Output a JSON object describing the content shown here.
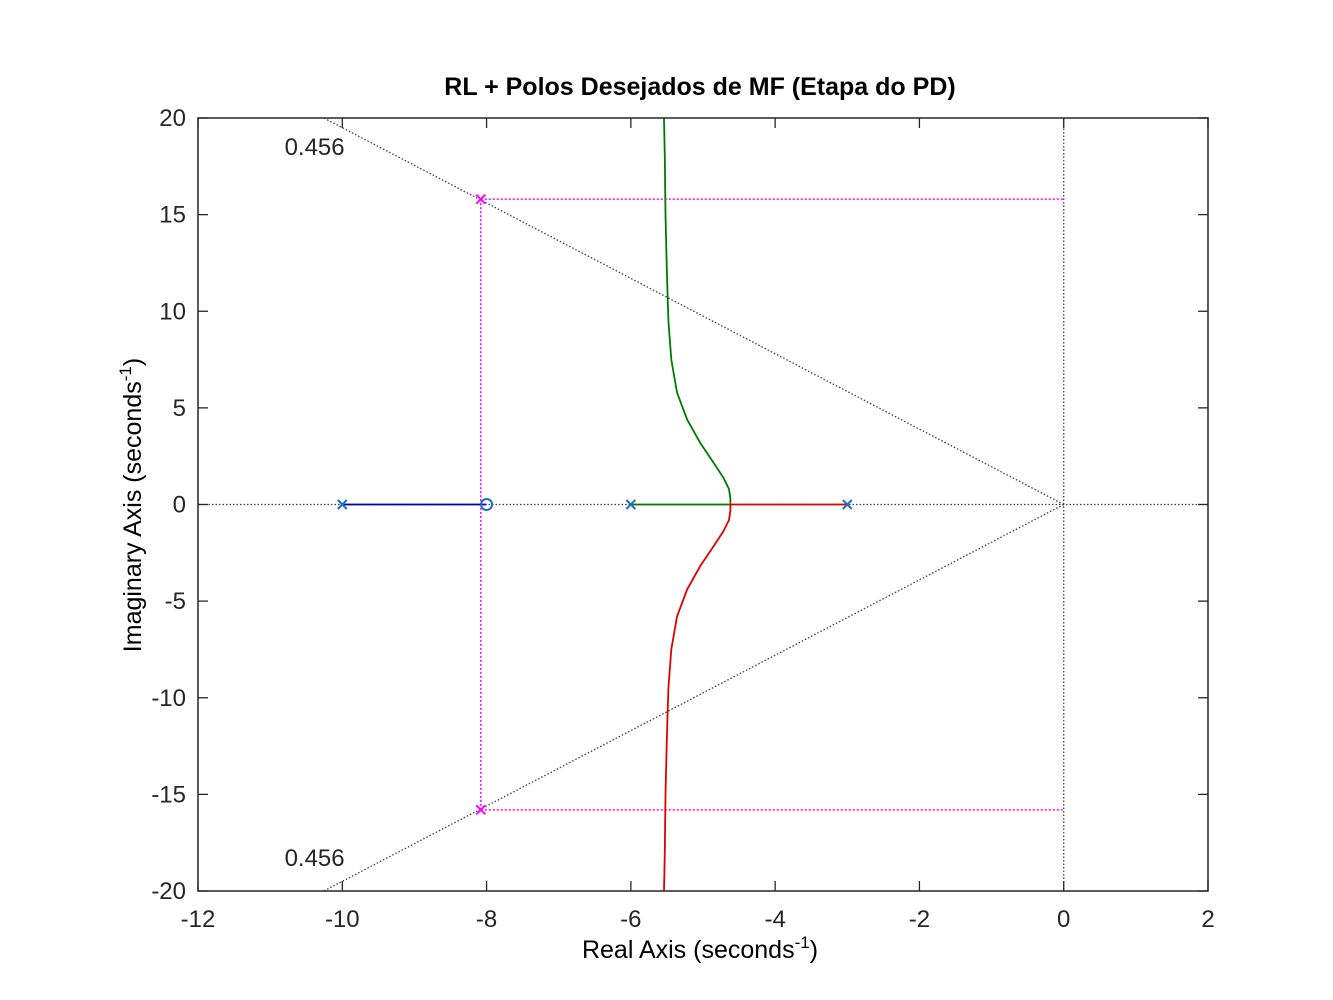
{
  "chart_data": {
    "type": "line",
    "title": "RL + Polos Desejados de MF (Etapa do PD)",
    "xlabel": "Real Axis (seconds",
    "xlabel_sup": "-1",
    "xlabel_end": ")",
    "ylabel": "Imaginary Axis (seconds",
    "ylabel_sup": "-1",
    "ylabel_end": ")",
    "xlim": [
      -12,
      2
    ],
    "ylim": [
      -20,
      20
    ],
    "xticks": [
      -12,
      -10,
      -8,
      -6,
      -4,
      -2,
      0,
      2
    ],
    "yticks": [
      -20,
      -15,
      -10,
      -5,
      0,
      5,
      10,
      15,
      20
    ],
    "xtick_labels": [
      "-12",
      "-10",
      "-8",
      "-6",
      "-4",
      "-2",
      "0",
      "2"
    ],
    "ytick_labels": [
      "-20",
      "-15",
      "-10",
      "-5",
      "0",
      "5",
      "10",
      "15",
      "20"
    ],
    "grid": false,
    "damping_annotations": [
      {
        "text": "0.456",
        "x": -10.8,
        "y": 18.5
      },
      {
        "text": "0.456",
        "x": -10.8,
        "y": -18.3
      }
    ],
    "damping_line": {
      "zeta": 0.456,
      "slope": 1.95,
      "color": "#404040"
    },
    "open_loop_poles": [
      {
        "x": -10,
        "y": 0
      },
      {
        "x": -6,
        "y": 0
      },
      {
        "x": -3,
        "y": 0
      }
    ],
    "open_loop_zeros": [
      {
        "x": -8,
        "y": 0
      }
    ],
    "desired_poles": [
      {
        "x": -8.08,
        "y": 15.8
      },
      {
        "x": -8.08,
        "y": -15.8
      }
    ],
    "series": [
      {
        "color": "#0000b3",
        "points": [
          [
            -10,
            0
          ],
          [
            -8,
            0
          ]
        ]
      },
      {
        "color": "#007a00",
        "points": [
          [
            -6,
            0
          ],
          [
            -5.5,
            0
          ],
          [
            -5.0,
            0
          ],
          [
            -4.62,
            0
          ],
          [
            -4.62,
            0.3
          ],
          [
            -4.64,
            0.8
          ],
          [
            -4.72,
            1.4
          ],
          [
            -4.86,
            2.2
          ],
          [
            -5.04,
            3.2
          ],
          [
            -5.22,
            4.4
          ],
          [
            -5.36,
            5.8
          ],
          [
            -5.44,
            7.5
          ],
          [
            -5.48,
            9.5
          ],
          [
            -5.5,
            12
          ],
          [
            -5.52,
            15
          ],
          [
            -5.53,
            18
          ],
          [
            -5.54,
            20
          ]
        ]
      },
      {
        "color": "#e00000",
        "points": [
          [
            -3,
            0
          ],
          [
            -3.5,
            0
          ],
          [
            -4.0,
            0
          ],
          [
            -4.62,
            0
          ],
          [
            -4.62,
            -0.3
          ],
          [
            -4.64,
            -0.8
          ],
          [
            -4.72,
            -1.4
          ],
          [
            -4.86,
            -2.2
          ],
          [
            -5.04,
            -3.2
          ],
          [
            -5.22,
            -4.4
          ],
          [
            -5.36,
            -5.8
          ],
          [
            -5.44,
            -7.5
          ],
          [
            -5.48,
            -9.5
          ],
          [
            -5.5,
            -12
          ],
          [
            -5.52,
            -15
          ],
          [
            -5.53,
            -18
          ],
          [
            -5.54,
            -20
          ]
        ]
      }
    ],
    "colors": {
      "pole_marker": "#1f6fbf",
      "desired": "#ff00ff",
      "axis": "#262626",
      "reference_lines": "#404040"
    }
  }
}
